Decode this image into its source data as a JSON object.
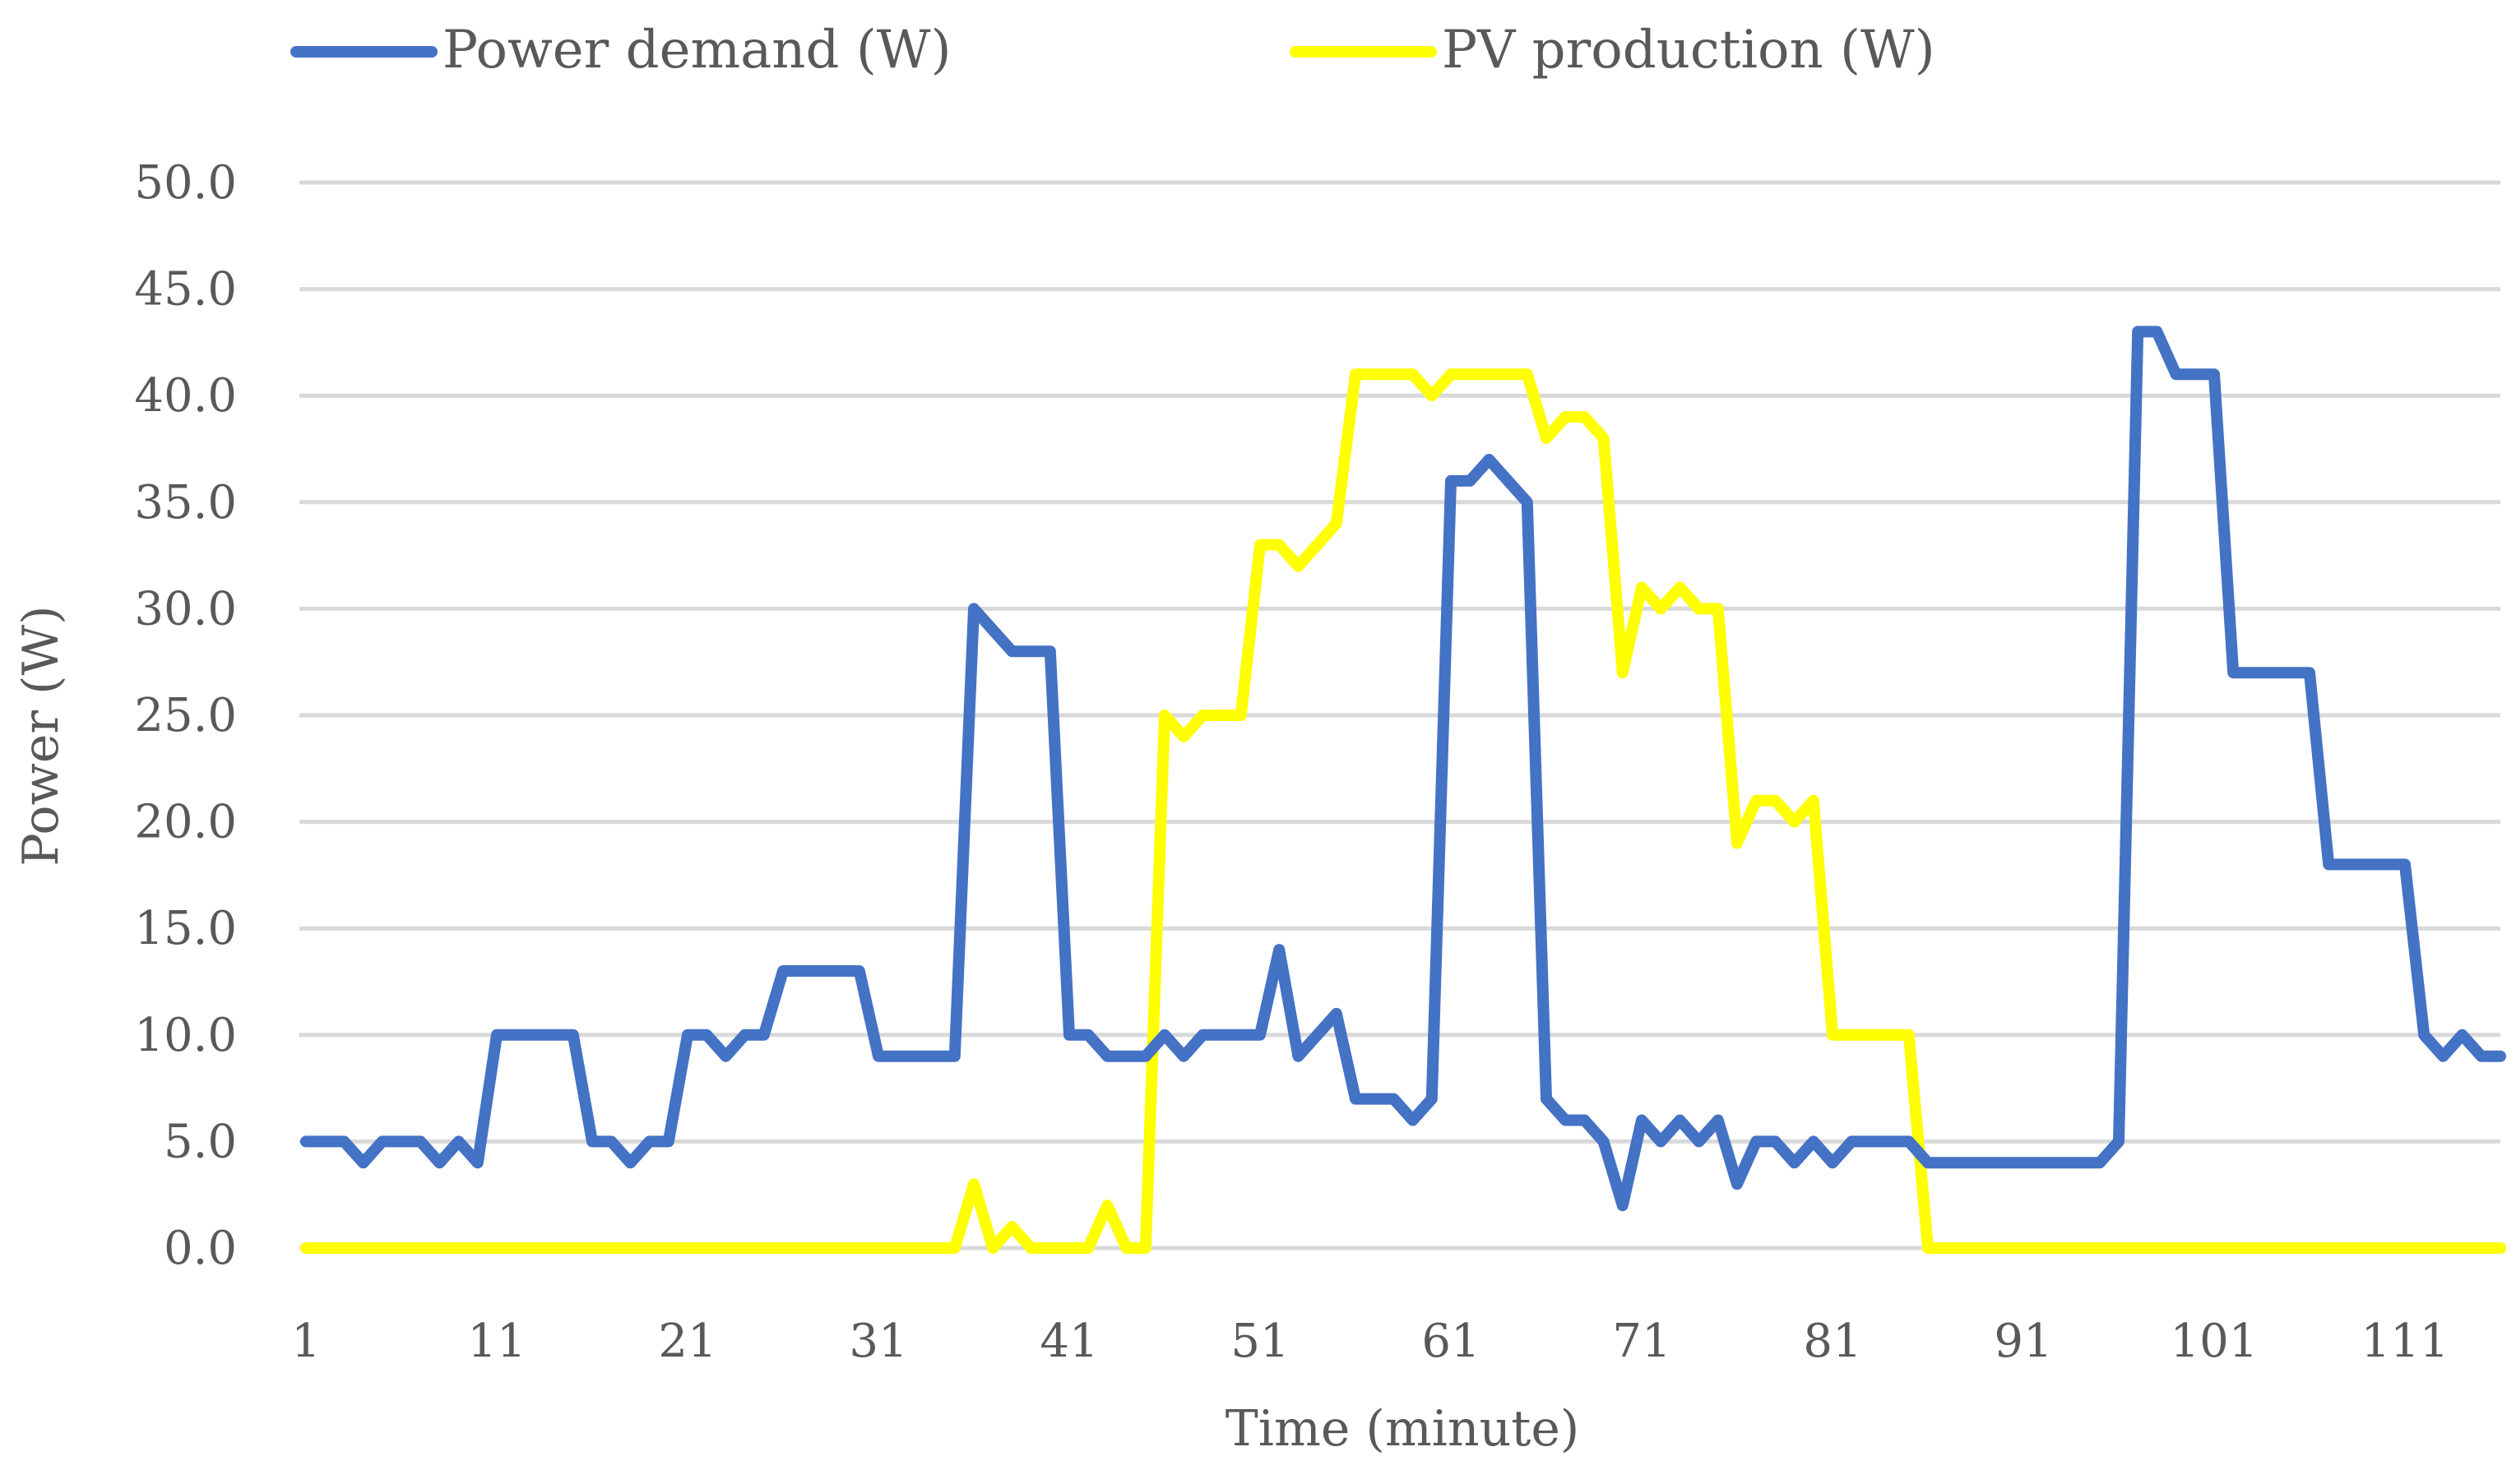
{
  "chart_data": {
    "type": "line",
    "title": "",
    "xlabel": "Time (minute)",
    "ylabel": "Power (W)",
    "ylim": [
      0,
      50
    ],
    "yticks": [
      "0.0",
      "5.0",
      "10.0",
      "15.0",
      "20.0",
      "25.0",
      "30.0",
      "35.0",
      "40.0",
      "45.0",
      "50.0"
    ],
    "xticks": [
      "1",
      "11",
      "21",
      "31",
      "41",
      "51",
      "61",
      "71",
      "81",
      "91",
      "101",
      "111"
    ],
    "x_range": [
      1,
      116
    ],
    "legend_position": "top",
    "grid": true,
    "series": [
      {
        "name": "Power demand (W)",
        "color": "#4472C4",
        "values": [
          5,
          5,
          5,
          4,
          5,
          5,
          5,
          4,
          5,
          4,
          10,
          10,
          10,
          10,
          10,
          5,
          5,
          4,
          5,
          5,
          10,
          10,
          9,
          10,
          10,
          13,
          13,
          13,
          13,
          13,
          9,
          9,
          9,
          9,
          9,
          30,
          29,
          28,
          28,
          28,
          10,
          10,
          9,
          9,
          9,
          10,
          9,
          10,
          10,
          10,
          10,
          14,
          9,
          10,
          11,
          7,
          7,
          7,
          6,
          7,
          36,
          36,
          37,
          36,
          35,
          7,
          6,
          6,
          5,
          2,
          6,
          5,
          6,
          5,
          6,
          3,
          5,
          5,
          4,
          5,
          4,
          5,
          5,
          5,
          5,
          4,
          4,
          4,
          4,
          4,
          4,
          4,
          4,
          4,
          4,
          5,
          43,
          43,
          41,
          41,
          41,
          27,
          27,
          27,
          27,
          27,
          18,
          18,
          18,
          18,
          18,
          10,
          9,
          10,
          9,
          9
        ]
      },
      {
        "name": "PV production (W)",
        "color": "#FFFF00",
        "values": [
          0,
          0,
          0,
          0,
          0,
          0,
          0,
          0,
          0,
          0,
          0,
          0,
          0,
          0,
          0,
          0,
          0,
          0,
          0,
          0,
          0,
          0,
          0,
          0,
          0,
          0,
          0,
          0,
          0,
          0,
          0,
          0,
          0,
          0,
          0,
          3,
          0,
          1,
          0,
          0,
          0,
          0,
          2,
          0,
          0,
          25,
          24,
          25,
          25,
          25,
          33,
          33,
          32,
          33,
          34,
          41,
          41,
          41,
          41,
          40,
          41,
          41,
          41,
          41,
          41,
          38,
          39,
          39,
          38,
          27,
          31,
          30,
          31,
          30,
          30,
          19,
          21,
          21,
          20,
          21,
          10,
          10,
          10,
          10,
          10,
          0,
          0,
          0,
          0,
          0,
          0,
          0,
          0,
          0,
          0,
          0,
          0,
          0,
          0,
          0,
          0,
          0,
          0,
          0,
          0,
          0,
          0,
          0,
          0,
          0,
          0,
          0,
          0,
          0,
          0,
          0
        ]
      }
    ]
  }
}
